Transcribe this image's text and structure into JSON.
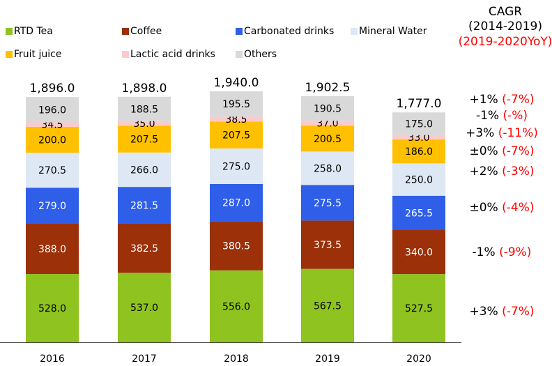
{
  "chart_data": {
    "type": "stacked_bar",
    "categories": [
      "2016",
      "2017",
      "2018",
      "2019",
      "2020"
    ],
    "series": [
      {
        "name": "RTD Tea",
        "color": "#8fc31f",
        "values": [
          528.0,
          537.0,
          556.0,
          567.5,
          527.5
        ],
        "value_labels": [
          "528.0",
          "537.0",
          "556.0",
          "567.5",
          "527.5"
        ],
        "cagr": "+3%",
        "yoy": "(-7%)"
      },
      {
        "name": "Coffee",
        "color": "#9b3009",
        "values": [
          388.0,
          382.5,
          380.5,
          373.5,
          340.0
        ],
        "value_labels": [
          "388.0",
          "382.5",
          "380.5",
          "373.5",
          "340.0"
        ],
        "cagr": "-1%",
        "yoy": "(-9%)"
      },
      {
        "name": "Carbonated drinks",
        "color": "#2f5fe8",
        "values": [
          279.0,
          281.5,
          287.0,
          275.5,
          265.5
        ],
        "value_labels": [
          "279.0",
          "281.5",
          "287.0",
          "275.5",
          "265.5"
        ],
        "cagr": "±0%",
        "yoy": "(-4%)"
      },
      {
        "name": "Mineral Water",
        "color": "#dde8f4",
        "values": [
          270.5,
          266.0,
          275.0,
          258.0,
          250.0
        ],
        "value_labels": [
          "270.5",
          "266.0",
          "275.0",
          "258.0",
          "250.0"
        ],
        "cagr": "+2%",
        "yoy": "(-3%)"
      },
      {
        "name": "Fruit juice",
        "color": "#ffc000",
        "values": [
          200.0,
          207.5,
          207.5,
          200.5,
          186.0
        ],
        "value_labels": [
          "200.0",
          "207.5",
          "207.5",
          "200.5",
          "186.0"
        ],
        "cagr": "±0%",
        "yoy": "(-7%)"
      },
      {
        "name": "Lactic acid drinks",
        "color": "#fccaca",
        "values": [
          34.5,
          35.0,
          38.5,
          37.0,
          33.0
        ],
        "value_labels": [
          "34.5",
          "35.0",
          "38.5",
          "37.0",
          "33.0"
        ],
        "cagr": "+3%",
        "yoy": "(-11%)"
      },
      {
        "name": "Others",
        "color": "#d9d9d9",
        "values": [
          196.0,
          188.5,
          195.5,
          190.5,
          175.0
        ],
        "value_labels": [
          "196.0",
          "188.5",
          "195.5",
          "190.5",
          "175.0"
        ],
        "cagr": "-1%",
        "yoy": "(-%)"
      }
    ],
    "totals": {
      "values": [
        1896.0,
        1898.0,
        1940.0,
        1902.5,
        1777.0
      ],
      "value_labels": [
        "1,896.0",
        "1,898.0",
        "1,940.0",
        "1,902.5",
        "1,777.0"
      ],
      "cagr": "+1%",
      "yoy": "(-7%)"
    },
    "cagr_header": {
      "title": "CAGR",
      "period": "(2014-2019)",
      "yoy_period": "(2019-2020YoY)"
    }
  }
}
